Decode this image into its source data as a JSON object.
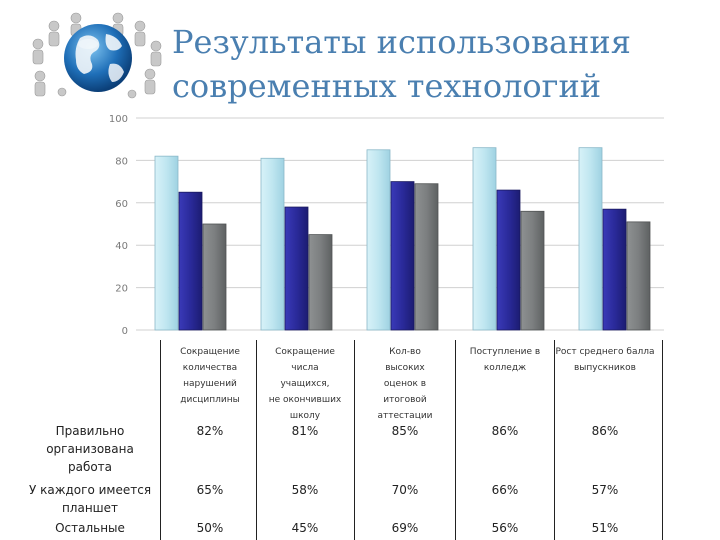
{
  "title_lines": [
    "Результаты использования",
    "современных технологий"
  ],
  "colors": {
    "title": "#4a7fb0",
    "series_1": "#bfe6f0",
    "series_2": "#2a2a9a",
    "series_3": "#7c7f80"
  },
  "chart_data": {
    "type": "bar",
    "categories": [
      "Сокращение количества нарушений дисциплины",
      "Сокращение числа учащихся, не окончивших школу",
      "Кол-во высоких оценок в итоговой аттестации",
      "Поступление в колледж",
      "Рост среднего балла выпускников"
    ],
    "series": [
      {
        "name": "Правильно организована работа",
        "values": [
          82,
          81,
          85,
          86,
          86
        ],
        "labels": [
          "82%",
          "81%",
          "85%",
          "86%",
          "86%"
        ]
      },
      {
        "name": "У каждого имеется планшет",
        "values": [
          65,
          58,
          70,
          66,
          57
        ],
        "labels": [
          "65%",
          "58%",
          "70%",
          "66%",
          "57%"
        ]
      },
      {
        "name": "Остальные",
        "values": [
          50,
          45,
          69,
          56,
          51
        ],
        "labels": [
          "50%",
          "45%",
          "69%",
          "56%",
          "51%"
        ]
      }
    ],
    "yticks": [
      "0",
      "20",
      "40",
      "60",
      "80",
      "100"
    ],
    "ylim": [
      0,
      100
    ],
    "grid": true,
    "legend": "table-below"
  },
  "table": {
    "category_lines": [
      [
        "Сокращение",
        "количества",
        "нарушений",
        "дисциплины"
      ],
      [
        "Сокращение",
        "числа",
        "учащихся,",
        "не окончивших",
        "школу"
      ],
      [
        "Кол-во",
        "высоких",
        "оценок в",
        "итоговой",
        "аттестации"
      ],
      [
        "Поступление в",
        "колледж"
      ],
      [
        "Рост среднего балла",
        "выпускников"
      ]
    ],
    "row_label_lines": [
      [
        "Правильно",
        "организована",
        "работа"
      ],
      [
        "У каждого имеется",
        "планшет"
      ],
      [
        "Остальные"
      ]
    ]
  }
}
